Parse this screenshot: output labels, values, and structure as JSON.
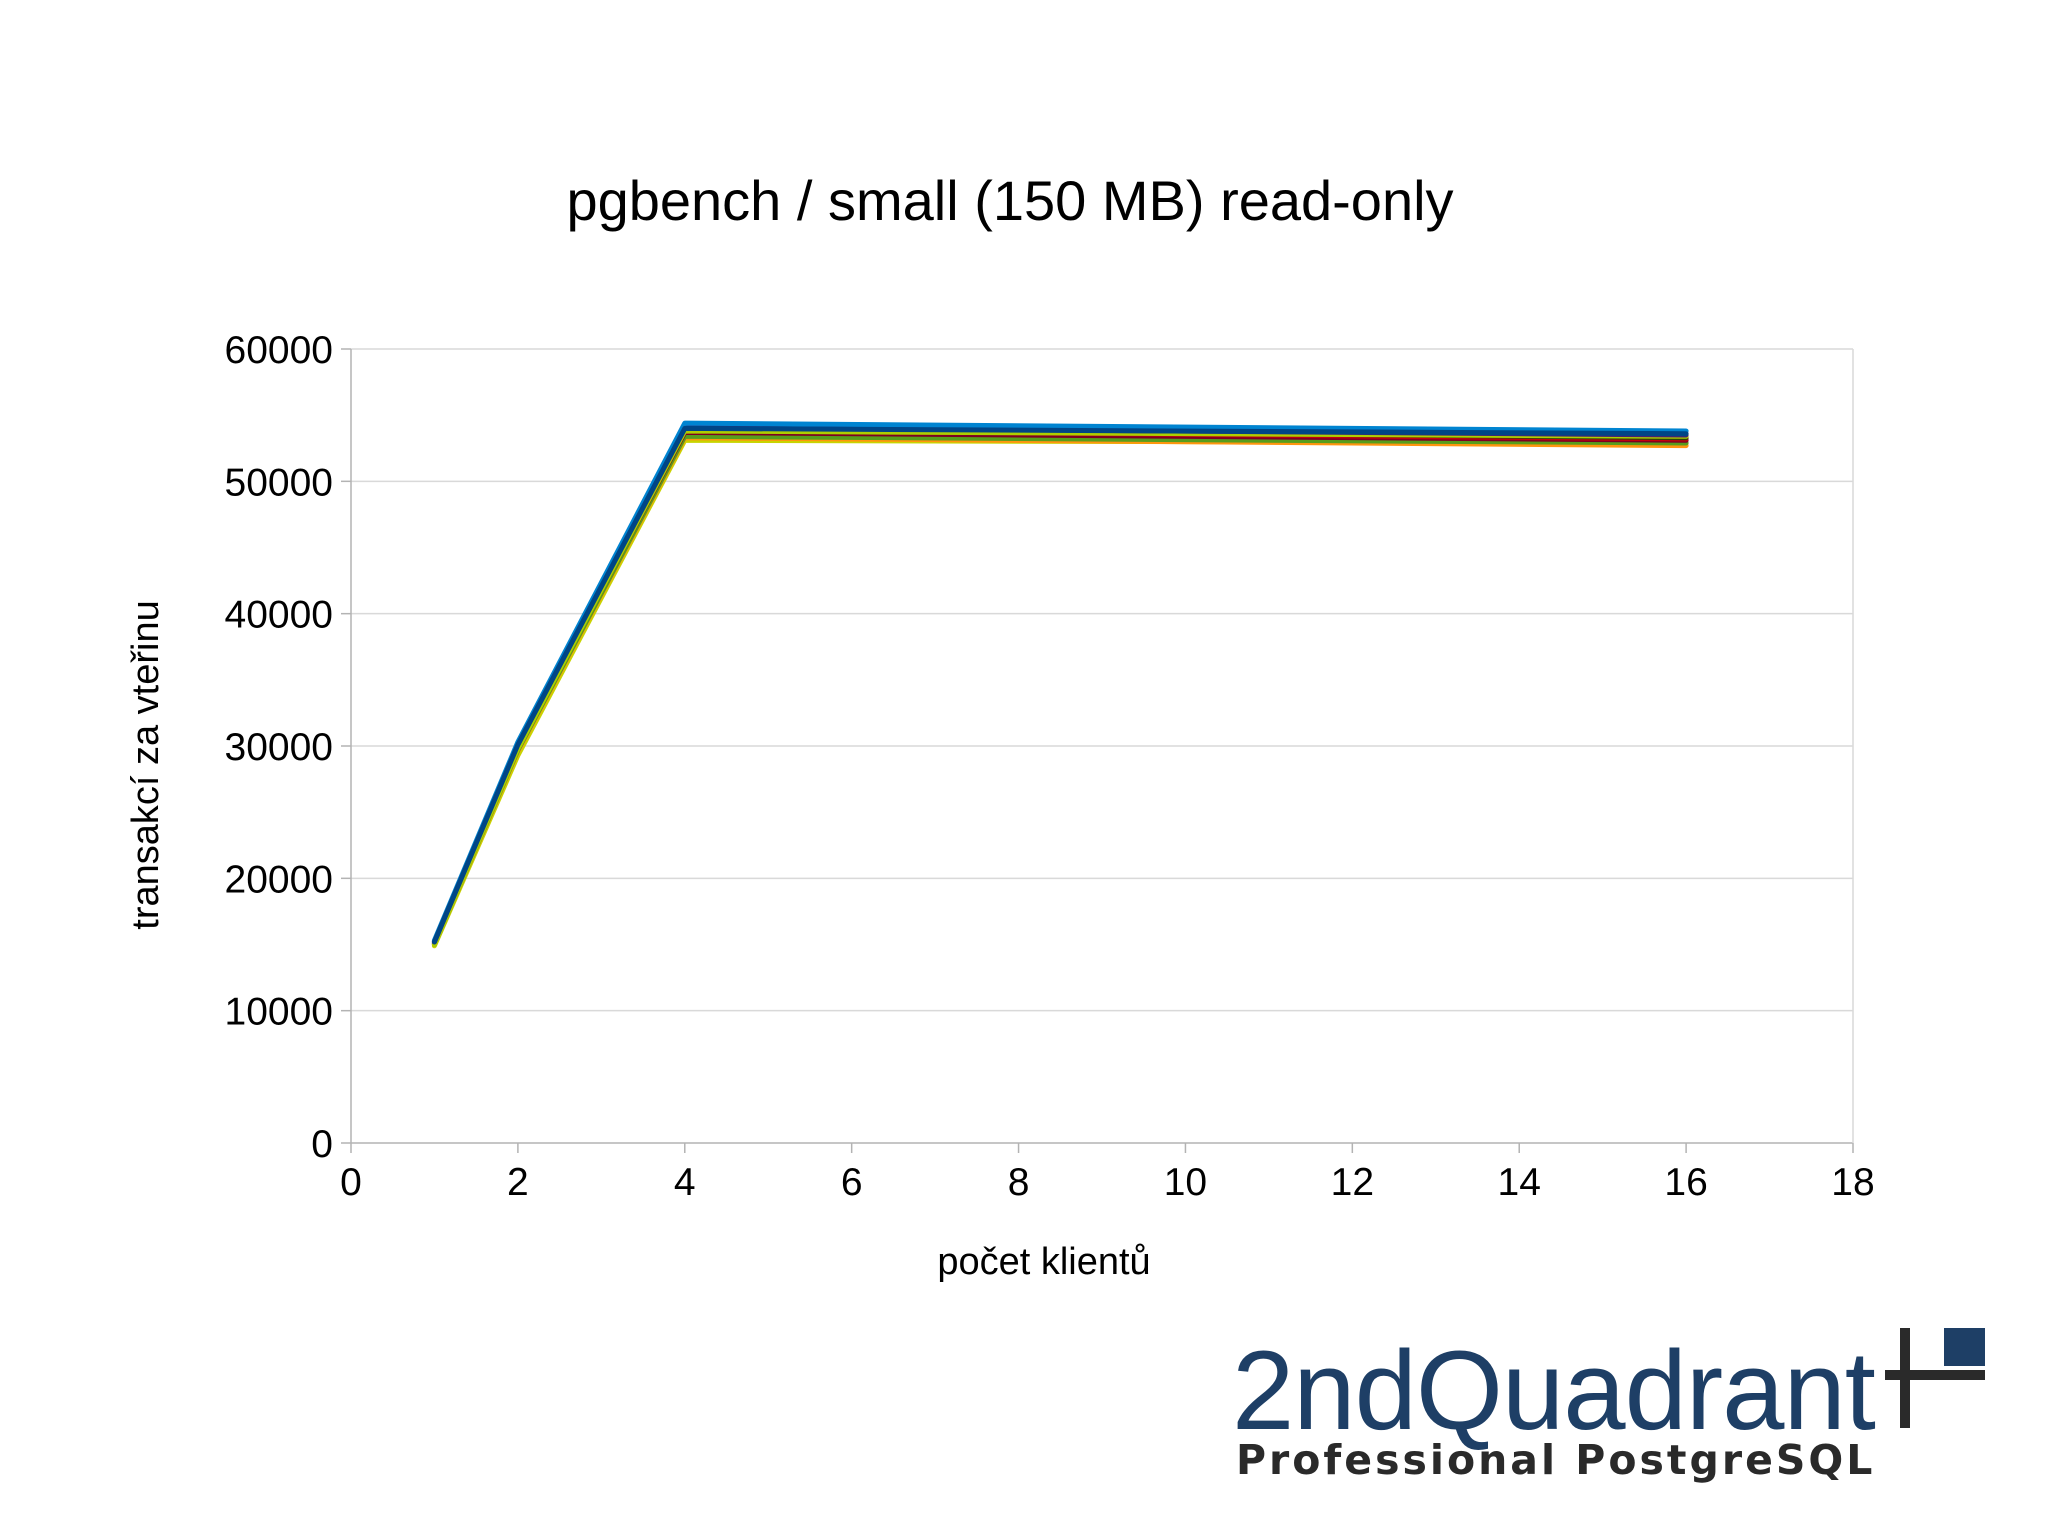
{
  "chart_data": {
    "type": "line",
    "title": "pgbench / small (150 MB) read-only",
    "xlabel": "počet klientů",
    "ylabel": "transakcí za vteřinu",
    "xlim": [
      0,
      18
    ],
    "ylim": [
      0,
      60000
    ],
    "xticks": [
      "0",
      "2",
      "4",
      "6",
      "8",
      "10",
      "12",
      "14",
      "16",
      "18"
    ],
    "yticks": [
      "0",
      "10000",
      "20000",
      "30000",
      "40000",
      "50000",
      "60000"
    ],
    "grid": true,
    "legend": false,
    "x": [
      1,
      2,
      4,
      16
    ],
    "series": [
      {
        "color": "#c8d400",
        "values": [
          14900,
          29300,
          53100,
          52900
        ]
      },
      {
        "color": "#ff950e",
        "values": [
          15000,
          29600,
          53300,
          52700
        ]
      },
      {
        "color": "#579d1c",
        "values": [
          15000,
          29700,
          53400,
          52900
        ]
      },
      {
        "color": "#7e0021",
        "values": [
          15100,
          29900,
          53700,
          53100
        ]
      },
      {
        "color": "#c5000b",
        "values": [
          15100,
          30000,
          53900,
          53200
        ]
      },
      {
        "color": "#314004",
        "values": [
          15200,
          30100,
          54000,
          53300
        ]
      },
      {
        "color": "#aecf00",
        "values": [
          15000,
          29800,
          53800,
          53400
        ]
      },
      {
        "color": "#4b1f6f",
        "values": [
          15200,
          30200,
          54100,
          53500
        ]
      },
      {
        "color": "#0084d1",
        "values": [
          15300,
          30300,
          54400,
          53800
        ]
      },
      {
        "color": "#004586",
        "values": [
          15200,
          30100,
          54000,
          53600
        ]
      }
    ]
  },
  "logo": {
    "name": "2ndQuadrant",
    "tagline": "Professional PostgreSQL",
    "mark_icon": "plus-with-square-icon",
    "name_color": "#1e3f66",
    "tagline_color": "#2a2a2a"
  }
}
